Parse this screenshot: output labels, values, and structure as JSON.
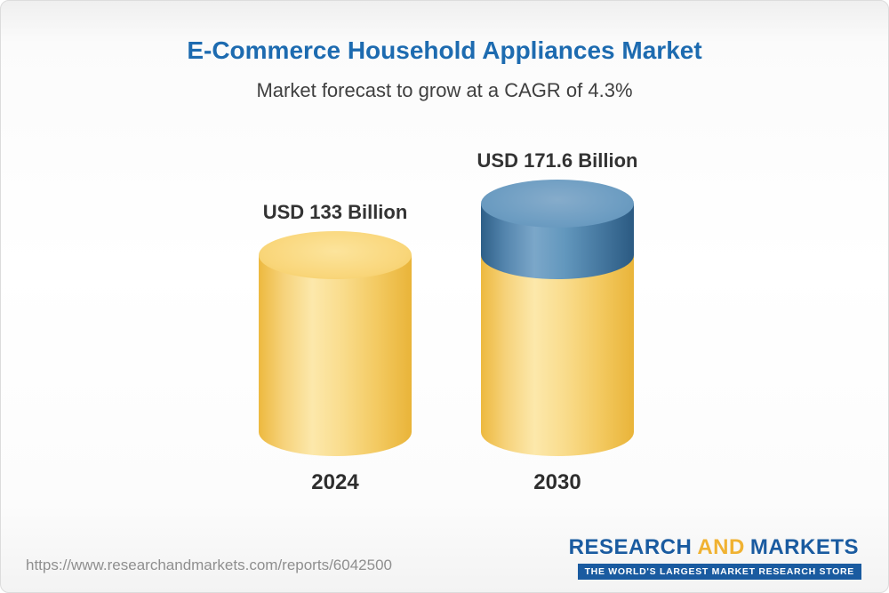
{
  "header": {
    "title": "E-Commerce Household Appliances Market",
    "subtitle": "Market forecast to grow at a CAGR of 4.3%"
  },
  "chart_data": {
    "type": "bar",
    "subtype": "3d-cylinder",
    "title": "E-Commerce Household Appliances Market",
    "subtitle": "Market forecast to grow at a CAGR of 4.3%",
    "cagr_percent": 4.3,
    "categories": [
      "2024",
      "2030"
    ],
    "values": [
      133,
      171.6
    ],
    "unit": "USD Billion",
    "data_labels": [
      "USD 133 Billion",
      "USD 171.6 Billion"
    ],
    "ylim": [
      0,
      171.6
    ],
    "gridlines": false,
    "legend": "none",
    "bar_color": "#F5CB5C",
    "growth_segment_color": "#4A7FA8"
  },
  "footer": {
    "url": "https://www.researchandmarkets.com/reports/6042500",
    "logo": {
      "research": "RESEARCH",
      "and": "AND",
      "markets": "MARKETS",
      "tagline": "THE WORLD'S LARGEST MARKET RESEARCH STORE"
    }
  },
  "colors": {
    "title_blue": "#1D6BB0",
    "subtitle_gray": "#404040",
    "bar_yellow": "#F5CB5C",
    "bar_blue": "#4A7FA8",
    "logo_blue": "#1A5BA0",
    "logo_yellow": "#F0B232",
    "url_gray": "#8F8F8F"
  }
}
